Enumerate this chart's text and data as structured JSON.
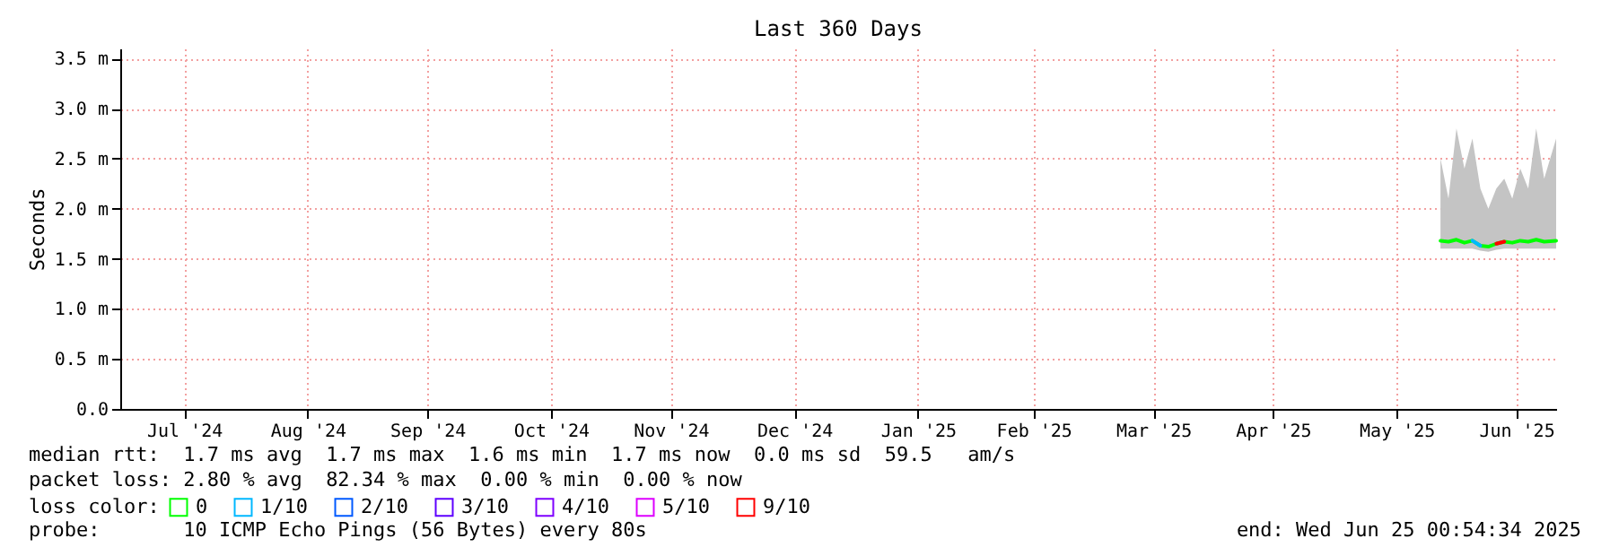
{
  "chart_data": {
    "type": "line",
    "title": "Last 360 Days",
    "ylabel": "Seconds",
    "legend_title": "loss color:",
    "legend": "bottom",
    "xlim": [
      "2024-06-30",
      "2025-06-25"
    ],
    "xticks": [
      {
        "value": "2024-07-16",
        "label": "Jul '24"
      },
      {
        "value": "2024-08-16",
        "label": "Aug '24"
      },
      {
        "value": "2024-09-15",
        "label": "Sep '24"
      },
      {
        "value": "2024-10-16",
        "label": "Oct '24"
      },
      {
        "value": "2024-11-15",
        "label": "Nov '24"
      },
      {
        "value": "2024-12-16",
        "label": "Dec '24"
      },
      {
        "value": "2025-01-16",
        "label": "Jan '25"
      },
      {
        "value": "2025-02-14",
        "label": "Feb '25"
      },
      {
        "value": "2025-03-16",
        "label": "Mar '25"
      },
      {
        "value": "2025-04-15",
        "label": "Apr '25"
      },
      {
        "value": "2025-05-16",
        "label": "May '25"
      },
      {
        "value": "2025-06-15",
        "label": "Jun '25"
      }
    ],
    "ylim": [
      0,
      3.6
    ],
    "yticks": [
      {
        "value": 0,
        "label": "0.0"
      },
      {
        "value": 0.5,
        "label": "0.5 m"
      },
      {
        "value": 1,
        "label": "1.0 m"
      },
      {
        "value": 1.5,
        "label": "1.5 m"
      },
      {
        "value": 2,
        "label": "2.0 m"
      },
      {
        "value": 2.5,
        "label": "2.5 m"
      },
      {
        "value": 3,
        "label": "3.0 m"
      },
      {
        "value": 3.5,
        "label": "3.5 m"
      }
    ],
    "grid": true,
    "marker": "none",
    "line_style": "solid",
    "series": [
      {
        "name": "0",
        "color": "#00ff00",
        "x": [
          "2025-05-27",
          "2025-05-29",
          "2025-05-31",
          "2025-06-02",
          "2025-06-04",
          "2025-06-06",
          "2025-06-08",
          "2025-06-10",
          "2025-06-12",
          "2025-06-14",
          "2025-06-16",
          "2025-06-18",
          "2025-06-20",
          "2025-06-22",
          "2025-06-25"
        ],
        "values": [
          1.68,
          1.67,
          1.69,
          1.66,
          1.68,
          1.63,
          1.62,
          1.65,
          1.67,
          1.66,
          1.68,
          1.67,
          1.69,
          1.67,
          1.68
        ],
        "lower": [
          1.6,
          1.6,
          1.6,
          1.6,
          1.6,
          1.58,
          1.57,
          1.59,
          1.6,
          1.6,
          1.6,
          1.6,
          1.6,
          1.6,
          1.6
        ],
        "upper": [
          2.5,
          2.1,
          2.8,
          2.4,
          2.7,
          2.2,
          2.0,
          2.2,
          2.3,
          2.1,
          2.4,
          2.2,
          2.8,
          2.3,
          2.7
        ]
      },
      {
        "name": "1/10",
        "color": "#00b8ff",
        "x": [
          "2025-06-04",
          "2025-06-06"
        ],
        "values": [
          1.68,
          1.63
        ]
      },
      {
        "name": "2/10",
        "color": "#0059ff"
      },
      {
        "name": "3/10",
        "color": "#5e00ff"
      },
      {
        "name": "4/10",
        "color": "#7e00ff"
      },
      {
        "name": "5/10",
        "color": "#dd00ff"
      },
      {
        "name": "9/10",
        "color": "#ff0000",
        "x": [
          "2025-06-10",
          "2025-06-12"
        ],
        "values": [
          1.65,
          1.67
        ]
      }
    ],
    "annotations": [
      "median rtt:  1.7 ms avg  1.7 ms max  1.6 ms min  1.7 ms now  0.0 ms sd  59.5   am/s",
      "packet loss: 2.80 % avg  82.34 % max  0.00 % min  0.00 % now",
      "probe:       10 ICMP Echo Pings (56 Bytes) every 80s",
      "end: Wed Jun 25 00:54:34 2025"
    ]
  }
}
